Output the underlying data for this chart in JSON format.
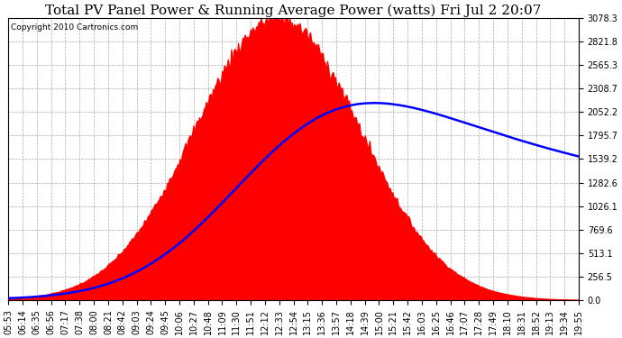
{
  "title": "Total PV Panel Power & Running Average Power (watts) Fri Jul 2 20:07",
  "copyright": "Copyright 2010 Cartronics.com",
  "y_ticks": [
    0.0,
    256.5,
    513.1,
    769.6,
    1026.1,
    1282.6,
    1539.2,
    1795.7,
    2052.2,
    2308.7,
    2565.3,
    2821.8,
    3078.3
  ],
  "x_labels": [
    "05:53",
    "06:14",
    "06:35",
    "06:56",
    "07:17",
    "07:38",
    "08:00",
    "08:21",
    "08:42",
    "09:03",
    "09:24",
    "09:45",
    "10:06",
    "10:27",
    "10:48",
    "11:09",
    "11:30",
    "11:51",
    "12:12",
    "12:33",
    "12:54",
    "13:15",
    "13:36",
    "13:57",
    "14:18",
    "14:39",
    "15:00",
    "15:21",
    "15:42",
    "16:03",
    "16:25",
    "16:46",
    "17:07",
    "17:28",
    "17:49",
    "18:10",
    "18:31",
    "18:52",
    "19:13",
    "19:34",
    "19:55"
  ],
  "background_color": "#ffffff",
  "plot_bg_color": "#ffffff",
  "grid_color": "#aaaaaa",
  "fill_color": "#ff0000",
  "line_color": "#0000ff",
  "title_fontsize": 11,
  "copyright_fontsize": 6.5,
  "tick_fontsize": 7,
  "pv_peak_watts": 3078.3,
  "avg_peak_watts": 2150.0,
  "ylim_max": 3078.3
}
